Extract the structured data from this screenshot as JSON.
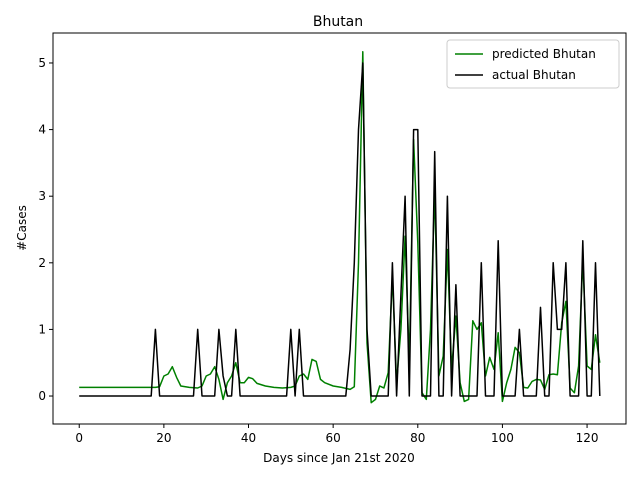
{
  "chart_data": {
    "type": "line",
    "title": "Bhutan",
    "xlabel": "Days since Jan 21st 2020",
    "ylabel": "#Cases",
    "xlim": [
      -6.2,
      129.2
    ],
    "ylim": [
      -0.42,
      5.45
    ],
    "xticks": [
      0,
      20,
      40,
      60,
      80,
      100,
      120
    ],
    "yticks": [
      0,
      1,
      2,
      3,
      4,
      5
    ],
    "grid": false,
    "legend_position": "top-right",
    "series": [
      {
        "name": "predicted Bhutan",
        "color": "#008000",
        "points": [
          [
            0,
            0.13
          ],
          [
            10,
            0.13
          ],
          [
            18,
            0.13
          ],
          [
            19,
            0.14
          ],
          [
            20,
            0.3
          ],
          [
            21,
            0.33
          ],
          [
            22,
            0.44
          ],
          [
            23,
            0.28
          ],
          [
            24,
            0.15
          ],
          [
            26,
            0.13
          ],
          [
            28,
            0.12
          ],
          [
            29,
            0.15
          ],
          [
            30,
            0.3
          ],
          [
            31,
            0.33
          ],
          [
            32,
            0.44
          ],
          [
            33,
            0.25
          ],
          [
            34,
            -0.05
          ],
          [
            35,
            0.2
          ],
          [
            36,
            0.3
          ],
          [
            37,
            0.5
          ],
          [
            38,
            0.2
          ],
          [
            39,
            0.2
          ],
          [
            40,
            0.28
          ],
          [
            41,
            0.26
          ],
          [
            42,
            0.19
          ],
          [
            44,
            0.15
          ],
          [
            46,
            0.13
          ],
          [
            48,
            0.12
          ],
          [
            50,
            0.13
          ],
          [
            51,
            0.15
          ],
          [
            52,
            0.3
          ],
          [
            53,
            0.33
          ],
          [
            54,
            0.25
          ],
          [
            55,
            0.55
          ],
          [
            56,
            0.52
          ],
          [
            57,
            0.25
          ],
          [
            58,
            0.2
          ],
          [
            60,
            0.15
          ],
          [
            62,
            0.13
          ],
          [
            64,
            0.1
          ],
          [
            65,
            0.14
          ],
          [
            66,
            2.0
          ],
          [
            67,
            5.17
          ],
          [
            68,
            0.8
          ],
          [
            69,
            -0.1
          ],
          [
            70,
            -0.05
          ],
          [
            71,
            0.15
          ],
          [
            72,
            0.12
          ],
          [
            73,
            0.35
          ],
          [
            74,
            1.8
          ],
          [
            75,
            0.2
          ],
          [
            76,
            1.0
          ],
          [
            77,
            2.4
          ],
          [
            78,
            0.5
          ],
          [
            79,
            3.85
          ],
          [
            80,
            2.3
          ],
          [
            81,
            0.05
          ],
          [
            82,
            -0.05
          ],
          [
            83,
            1.0
          ],
          [
            84,
            3.1
          ],
          [
            85,
            0.3
          ],
          [
            86,
            0.6
          ],
          [
            87,
            2.2
          ],
          [
            88,
            0.4
          ],
          [
            89,
            1.2
          ],
          [
            90,
            0.2
          ],
          [
            91,
            -0.08
          ],
          [
            92,
            -0.05
          ],
          [
            93,
            1.13
          ],
          [
            94,
            1.0
          ],
          [
            95,
            1.1
          ],
          [
            96,
            0.3
          ],
          [
            97,
            0.58
          ],
          [
            98,
            0.4
          ],
          [
            99,
            0.95
          ],
          [
            100,
            -0.08
          ],
          [
            101,
            0.2
          ],
          [
            102,
            0.4
          ],
          [
            103,
            0.73
          ],
          [
            104,
            0.65
          ],
          [
            105,
            0.13
          ],
          [
            106,
            0.12
          ],
          [
            107,
            0.22
          ],
          [
            108,
            0.25
          ],
          [
            109,
            0.24
          ],
          [
            110,
            0.1
          ],
          [
            111,
            0.32
          ],
          [
            112,
            0.33
          ],
          [
            113,
            0.32
          ],
          [
            114,
            1.1
          ],
          [
            115,
            1.42
          ],
          [
            116,
            0.12
          ],
          [
            117,
            0.05
          ],
          [
            118,
            0.45
          ],
          [
            119,
            2.05
          ],
          [
            120,
            0.45
          ],
          [
            121,
            0.4
          ],
          [
            122,
            0.92
          ],
          [
            123,
            0.5
          ]
        ]
      },
      {
        "name": "actual Bhutan",
        "color": "#000000",
        "points": [
          [
            0,
            0
          ],
          [
            17,
            0
          ],
          [
            18,
            1
          ],
          [
            19,
            0
          ],
          [
            27,
            0
          ],
          [
            28,
            1
          ],
          [
            29,
            0
          ],
          [
            32,
            0
          ],
          [
            33,
            1
          ],
          [
            34,
            0.3
          ],
          [
            35,
            0
          ],
          [
            36,
            0
          ],
          [
            37,
            1
          ],
          [
            38,
            0
          ],
          [
            49,
            0
          ],
          [
            50,
            1
          ],
          [
            51,
            0
          ],
          [
            52,
            1
          ],
          [
            53,
            0
          ],
          [
            63,
            0
          ],
          [
            64,
            0.7
          ],
          [
            65,
            2.0
          ],
          [
            66,
            4.0
          ],
          [
            67,
            5.0
          ],
          [
            68,
            1.0
          ],
          [
            69,
            0
          ],
          [
            73,
            0
          ],
          [
            74,
            2.0
          ],
          [
            75,
            0
          ],
          [
            77,
            3.0
          ],
          [
            78,
            0
          ],
          [
            79,
            4.0
          ],
          [
            80,
            4.0
          ],
          [
            81,
            0
          ],
          [
            83,
            0
          ],
          [
            84,
            3.67
          ],
          [
            85,
            0
          ],
          [
            86,
            0
          ],
          [
            87,
            3.0
          ],
          [
            88,
            0
          ],
          [
            89,
            1.67
          ],
          [
            90,
            0
          ],
          [
            94,
            0
          ],
          [
            95,
            2.0
          ],
          [
            96,
            0
          ],
          [
            98,
            0
          ],
          [
            99,
            2.33
          ],
          [
            100,
            0
          ],
          [
            103,
            0
          ],
          [
            104,
            1.0
          ],
          [
            105,
            0
          ],
          [
            108,
            0
          ],
          [
            109,
            1.33
          ],
          [
            110,
            0
          ],
          [
            111,
            0
          ],
          [
            112,
            2.0
          ],
          [
            113,
            1.0
          ],
          [
            114,
            1.0
          ],
          [
            115,
            2.0
          ],
          [
            116,
            0
          ],
          [
            118,
            0
          ],
          [
            119,
            2.33
          ],
          [
            120,
            0
          ],
          [
            121,
            0
          ],
          [
            122,
            2.0
          ],
          [
            123,
            0
          ]
        ]
      }
    ]
  }
}
